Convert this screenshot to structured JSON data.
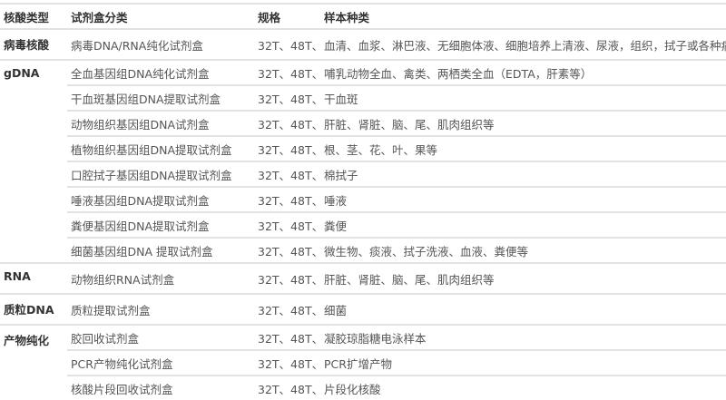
{
  "headers": [
    "核酸类型",
    "试剂盒分类",
    "规格",
    "样本种类"
  ],
  "groups": [
    {
      "type": "病毒核酸",
      "rows": [
        {
          "kit": "病毒DNA/RNA纯化试剂盒",
          "spec": "32T、48T、96T",
          "sample": "血清、血浆、淋巴液、无细胞体液、细胞培养上清液、尿液，组织，拭子或各种病毒保存液"
        }
      ]
    },
    {
      "type": "gDNA",
      "rows": [
        {
          "kit": "全血基因组DNA纯化试剂盒",
          "spec": "32T、48T、96T",
          "sample": "哺乳动物全血、禽类、两栖类全血（EDTA，肝素等）"
        },
        {
          "kit": "干血斑基因组DNA提取试剂盒",
          "spec": "32T、48T、96T",
          "sample": "干血斑"
        },
        {
          "kit": "动物组织基因组DNA试剂盒",
          "spec": "32T、48T、96T",
          "sample": "肝脏、肾脏、脑、尾、肌肉组织等"
        },
        {
          "kit": "植物组织基因组DNA提取试剂盒",
          "spec": "32T、48T、96T",
          "sample": "根、茎、花、叶、果等"
        },
        {
          "kit": "口腔拭子基因组DNA提取试剂盒",
          "spec": "32T、48T、96T",
          "sample": "棉拭子"
        },
        {
          "kit": "唾液基因组DNA提取试剂盒",
          "spec": "32T、48T、96T",
          "sample": "唾液"
        },
        {
          "kit": "粪便基因组DNA提取试剂盒",
          "spec": "32T、48T、96T",
          "sample": "粪便"
        },
        {
          "kit": "细菌基因组DNA 提取试剂盒",
          "spec": "32T、48T、96T",
          "sample": "微生物、痰液、拭子洗液、血液、粪便等"
        }
      ]
    },
    {
      "type": "RNA",
      "rows": [
        {
          "kit": "动物组织RNA试剂盒",
          "spec": "32T、48T、96T",
          "sample": "肝脏、肾脏、脑、尾、肌肉组织等"
        }
      ]
    },
    {
      "type": "质粒DNA",
      "rows": [
        {
          "kit": "质粒提取试剂盒",
          "spec": "32T、48T、96T",
          "sample": "细菌"
        }
      ]
    },
    {
      "type": "产物纯化",
      "rows": [
        {
          "kit": "胶回收试剂盒",
          "spec": "32T、48T、96T",
          "sample": "凝胶琼脂糖电泳样本"
        },
        {
          "kit": "PCR产物纯化试剂盒",
          "spec": "32T、48T、96T",
          "sample": "PCR扩增产物"
        },
        {
          "kit": "核酸片段回收试剂盒",
          "spec": "32T、48T、96T",
          "sample": "片段化核酸"
        }
      ]
    }
  ]
}
